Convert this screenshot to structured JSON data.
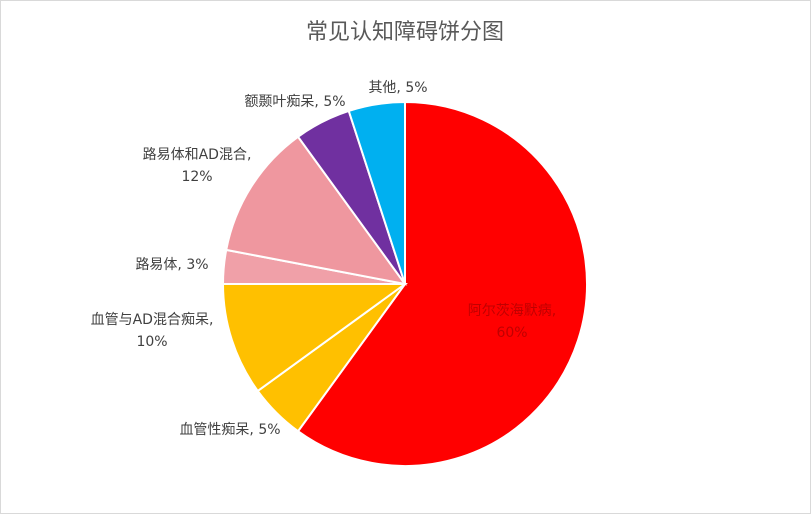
{
  "chart_data": {
    "type": "pie",
    "title": "常见认知障碍饼分图",
    "values": [
      60,
      5,
      10,
      3,
      12,
      5,
      5
    ],
    "value_labels": [
      "阿尔茨海默病, 60%",
      "血管性痴呆, 5%",
      "血管与AD混合痴呆, 10%",
      "路易体, 3%",
      "路易体和AD混合, 12%",
      "额颞叶痴呆, 5%",
      "其他, 5%"
    ],
    "colors": [
      "#ff0000",
      "#ffc000",
      "#ffc000",
      "#f0a0a8",
      "#ef979f",
      "#7030a0",
      "#00b0f0"
    ]
  }
}
